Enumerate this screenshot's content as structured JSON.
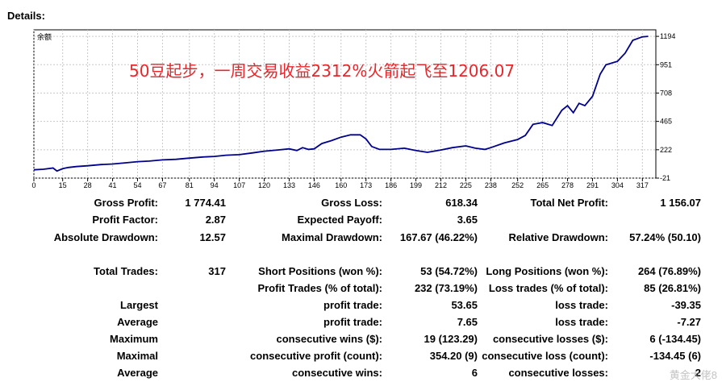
{
  "details_label": "Details:",
  "chart_data": {
    "type": "line",
    "legend": "余额",
    "overlay_text": "50豆起步，一周交易收益2312%火箭起飞至1206.07",
    "overlay_color": "#e8262b",
    "line_color": "#00008b",
    "grid": true,
    "xlim": [
      0,
      324
    ],
    "ylim": [
      -21,
      1250
    ],
    "x_ticks": [
      0,
      15,
      28,
      41,
      54,
      67,
      81,
      94,
      107,
      120,
      133,
      146,
      160,
      173,
      186,
      199,
      212,
      225,
      238,
      252,
      265,
      278,
      291,
      304,
      317
    ],
    "y_ticks": [
      1194,
      951,
      708,
      465,
      222,
      -21
    ],
    "x": [
      0,
      5,
      10,
      12,
      15,
      18,
      22,
      28,
      35,
      41,
      48,
      54,
      60,
      67,
      74,
      81,
      88,
      94,
      100,
      107,
      114,
      120,
      127,
      133,
      137,
      140,
      143,
      146,
      150,
      155,
      160,
      165,
      170,
      173,
      176,
      180,
      186,
      193,
      199,
      205,
      212,
      218,
      225,
      230,
      235,
      238,
      245,
      252,
      256,
      260,
      265,
      270,
      275,
      278,
      281,
      284,
      287,
      291,
      295,
      298,
      300,
      304,
      308,
      312,
      317,
      320
    ],
    "y": [
      50,
      55,
      65,
      40,
      60,
      70,
      78,
      85,
      95,
      100,
      110,
      120,
      125,
      135,
      140,
      150,
      160,
      165,
      175,
      180,
      195,
      210,
      220,
      230,
      215,
      240,
      225,
      230,
      275,
      300,
      330,
      350,
      350,
      315,
      250,
      225,
      225,
      235,
      215,
      200,
      220,
      240,
      255,
      235,
      225,
      240,
      280,
      310,
      345,
      440,
      455,
      430,
      560,
      600,
      540,
      620,
      600,
      680,
      870,
      950,
      960,
      980,
      1050,
      1160,
      1190,
      1194
    ]
  },
  "summary": [
    {
      "label": "Gross Profit:",
      "value": "1 774.41"
    },
    {
      "label": "Gross Loss:",
      "value": "618.34"
    },
    {
      "label": "Total Net Profit:",
      "value": "1 156.07"
    },
    {
      "label": "Profit Factor:",
      "value": "2.87"
    },
    {
      "label": "Expected Payoff:",
      "value": "3.65"
    },
    {
      "label": "Absolute Drawdown:",
      "value": "12.57"
    },
    {
      "label": "Maximal Drawdown:",
      "value": "167.67 (46.22%)"
    },
    {
      "label": "Relative Drawdown:",
      "value": "57.24% (50.10)"
    }
  ],
  "trades": {
    "total_label": "Total Trades:",
    "total_value": "317",
    "short_label": "Short Positions (won %):",
    "short_value": "53 (54.72%)",
    "long_label": "Long Positions (won %):",
    "long_value": "264 (76.89%)",
    "profit_label": "Profit Trades (% of total):",
    "profit_value": "232 (73.19%)",
    "loss_label": "Loss trades (% of total):",
    "loss_value": "85 (26.81%)",
    "rows": [
      {
        "left": "Largest",
        "mid": "profit trade:",
        "mid_value": "53.65",
        "right": "loss trade:",
        "right_value": "-39.35"
      },
      {
        "left": "Average",
        "mid": "profit trade:",
        "mid_value": "7.65",
        "right": "loss trade:",
        "right_value": "-7.27"
      },
      {
        "left": "Maximum",
        "mid": "consecutive wins ($):",
        "mid_value": "19 (123.29)",
        "right": "consecutive losses ($):",
        "right_value": "6 (-134.45)"
      },
      {
        "left": "Maximal",
        "mid": "consecutive profit (count):",
        "mid_value": "354.20 (9)",
        "right": "consecutive loss (count):",
        "right_value": "-134.45 (6)"
      },
      {
        "left": "Average",
        "mid": "consecutive wins:",
        "mid_value": "6",
        "right": "consecutive losses:",
        "right_value": "2"
      }
    ]
  },
  "watermark": "黄金大佬8"
}
